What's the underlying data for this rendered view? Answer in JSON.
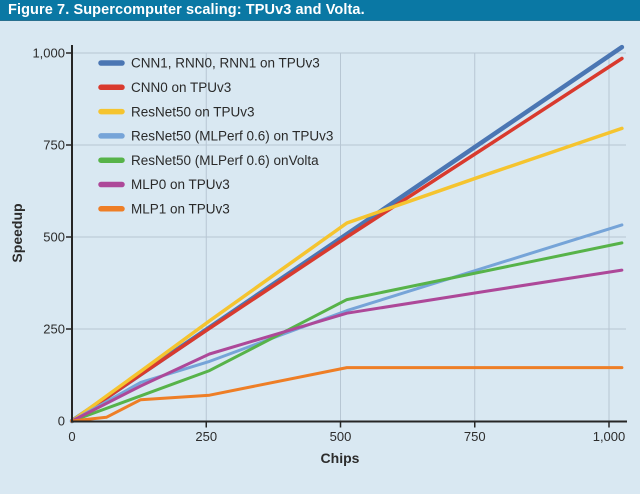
{
  "figure_caption": "Figure 7. Supercomputer scaling: TPUv3 and Volta.",
  "colors": {
    "caption_bar_bg": "#0a78a4",
    "caption_text": "#ffffff",
    "background": "#d9e8f2",
    "gridline": "#b7c6d3",
    "axis": "#262626",
    "tick_text": "#2c2c2c",
    "legend_text": "#2a2a2a"
  },
  "chart_data": {
    "type": "line",
    "title": "Figure 7. Supercomputer scaling: TPUv3 and Volta.",
    "xlabel": "Chips",
    "ylabel": "Speedup",
    "xlim": [
      0,
      1033
    ],
    "ylim": [
      0,
      1022
    ],
    "x_ticks": [
      0,
      250,
      500,
      750,
      1000
    ],
    "y_ticks": [
      0,
      250,
      500,
      750,
      1000
    ],
    "x_tick_labels": [
      "0",
      "250",
      "500",
      "750",
      "1,000"
    ],
    "y_tick_labels": [
      "0",
      "250",
      "500",
      "750",
      "1,000"
    ],
    "grid": true,
    "legend_position": "top-left-inside",
    "series": [
      {
        "name": "CNN1, RNN0, RNN1 on TPUv3",
        "color": "#4b76b3",
        "width": 4.5,
        "points": [
          [
            0,
            0
          ],
          [
            1024,
            1016
          ]
        ]
      },
      {
        "name": "CNN0 on TPUv3",
        "color": "#d93a2e",
        "width": 3.5,
        "points": [
          [
            0,
            0
          ],
          [
            256,
            252
          ],
          [
            512,
            500
          ],
          [
            768,
            742
          ],
          [
            1024,
            985
          ]
        ]
      },
      {
        "name": "ResNet50 on TPUv3",
        "color": "#f5c42f",
        "width": 3.5,
        "points": [
          [
            0,
            0
          ],
          [
            128,
            135
          ],
          [
            256,
            272
          ],
          [
            512,
            538
          ],
          [
            768,
            668
          ],
          [
            1024,
            795
          ]
        ]
      },
      {
        "name": "ResNet50 (MLPerf 0.6) on TPUv3",
        "color": "#76a4d8",
        "width": 3,
        "points": [
          [
            0,
            0
          ],
          [
            128,
            105
          ],
          [
            256,
            162
          ],
          [
            512,
            300
          ],
          [
            1024,
            533
          ]
        ]
      },
      {
        "name": "ResNet50 (MLPerf 0.6) onVolta",
        "color": "#57b349",
        "width": 3,
        "points": [
          [
            0,
            0
          ],
          [
            256,
            137
          ],
          [
            512,
            330
          ],
          [
            1024,
            484
          ]
        ]
      },
      {
        "name": "MLP0 on TPUv3",
        "color": "#ad4899",
        "width": 3,
        "points": [
          [
            0,
            0
          ],
          [
            128,
            95
          ],
          [
            256,
            182
          ],
          [
            512,
            293
          ],
          [
            768,
            352
          ],
          [
            1024,
            410
          ]
        ]
      },
      {
        "name": "MLP1 on TPUv3",
        "color": "#ee7e26",
        "width": 3,
        "points": [
          [
            0,
            0
          ],
          [
            64,
            10
          ],
          [
            128,
            58
          ],
          [
            256,
            70
          ],
          [
            512,
            145
          ],
          [
            1024,
            145
          ]
        ]
      }
    ]
  }
}
